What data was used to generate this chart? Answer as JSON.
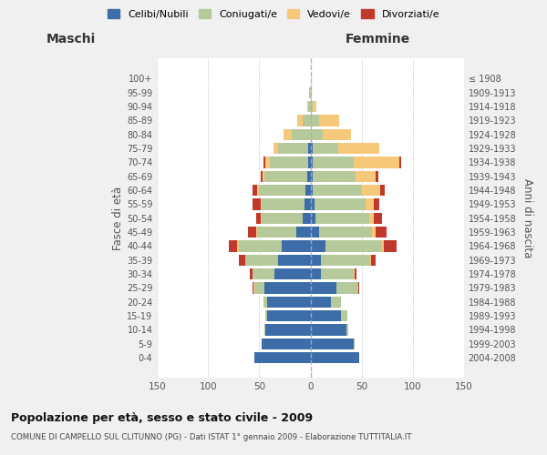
{
  "age_groups": [
    "0-4",
    "5-9",
    "10-14",
    "15-19",
    "20-24",
    "25-29",
    "30-34",
    "35-39",
    "40-44",
    "45-49",
    "50-54",
    "55-59",
    "60-64",
    "65-69",
    "70-74",
    "75-79",
    "80-84",
    "85-89",
    "90-94",
    "95-99",
    "100+"
  ],
  "birth_years": [
    "2004-2008",
    "1999-2003",
    "1994-1998",
    "1989-1993",
    "1984-1988",
    "1979-1983",
    "1974-1978",
    "1969-1973",
    "1964-1968",
    "1959-1963",
    "1954-1958",
    "1949-1953",
    "1944-1948",
    "1939-1943",
    "1934-1938",
    "1929-1933",
    "1924-1928",
    "1919-1923",
    "1914-1918",
    "1909-1913",
    "≤ 1908"
  ],
  "maschi": {
    "celibi": [
      55,
      48,
      44,
      42,
      42,
      45,
      35,
      32,
      28,
      14,
      8,
      6,
      5,
      3,
      2,
      2,
      0,
      0,
      0,
      0,
      0
    ],
    "coniugati": [
      0,
      0,
      1,
      2,
      4,
      10,
      22,
      32,
      42,
      38,
      40,
      42,
      45,
      42,
      38,
      30,
      18,
      8,
      2,
      1,
      0
    ],
    "vedovi": [
      0,
      0,
      0,
      0,
      0,
      1,
      0,
      0,
      2,
      1,
      1,
      1,
      2,
      2,
      4,
      4,
      8,
      5,
      1,
      0,
      0
    ],
    "divorziati": [
      0,
      0,
      0,
      0,
      0,
      1,
      2,
      6,
      8,
      8,
      4,
      8,
      5,
      2,
      2,
      0,
      0,
      0,
      0,
      0,
      0
    ]
  },
  "femmine": {
    "nubili": [
      48,
      42,
      35,
      30,
      20,
      25,
      10,
      10,
      15,
      8,
      5,
      4,
      2,
      2,
      2,
      2,
      0,
      0,
      0,
      0,
      0
    ],
    "coniugate": [
      0,
      1,
      2,
      6,
      10,
      22,
      32,
      48,
      55,
      52,
      52,
      50,
      48,
      42,
      40,
      25,
      12,
      8,
      2,
      0,
      0
    ],
    "vedove": [
      0,
      0,
      0,
      0,
      0,
      0,
      1,
      1,
      2,
      4,
      5,
      8,
      18,
      20,
      45,
      40,
      28,
      20,
      4,
      1,
      0
    ],
    "divorziate": [
      0,
      0,
      0,
      0,
      0,
      1,
      2,
      5,
      12,
      10,
      8,
      5,
      5,
      2,
      2,
      0,
      0,
      0,
      0,
      0,
      0
    ]
  },
  "colors": {
    "celibi": "#3d6da8",
    "coniugati": "#b5c99a",
    "vedovi": "#f5c87a",
    "divorziati": "#c0392b"
  },
  "xlim": 150,
  "title": "Popolazione per età, sesso e stato civile - 2009",
  "subtitle": "COMUNE DI CAMPELLO SUL CLITUNNO (PG) - Dati ISTAT 1° gennaio 2009 - Elaborazione TUTTITALIA.IT",
  "legend_labels": [
    "Celibi/Nubili",
    "Coniugati/e",
    "Vedovi/e",
    "Divorziati/e"
  ],
  "xlabel_left": "Maschi",
  "xlabel_right": "Femmine",
  "ylabel_left": "Fasce di età",
  "ylabel_right": "Anni di nascita",
  "bg_color": "#f0f0f0",
  "plot_bg": "#ffffff"
}
